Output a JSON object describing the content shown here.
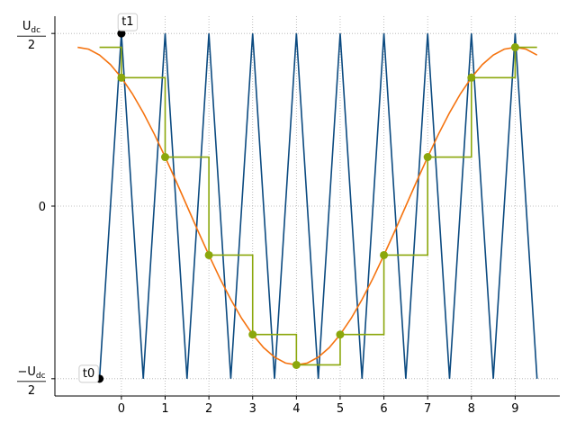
{
  "chart_data": {
    "type": "line",
    "xlim": [
      -1.52,
      10.02
    ],
    "ylim": [
      -1.1,
      1.1
    ],
    "xticks": [
      0,
      1,
      2,
      3,
      4,
      5,
      6,
      7,
      8,
      9
    ],
    "yticks": [
      {
        "value": -1,
        "label": "−Udc/2"
      },
      0,
      {
        "value": 1,
        "label": "Udc/2"
      }
    ],
    "grid": true,
    "series": [
      {
        "style": "line",
        "color": "#0b4a80",
        "x": [
          -0.5,
          0,
          0.5,
          1,
          1.5,
          2,
          2.5,
          3,
          3.5,
          4,
          4.5,
          5,
          5.5,
          6,
          6.5,
          7,
          7.5,
          8,
          8.5,
          9,
          9.5
        ],
        "values": [
          -1,
          1,
          -1,
          1,
          -1,
          1,
          -1,
          1,
          -1,
          1,
          -1,
          1,
          -1,
          1,
          -1,
          1,
          -1,
          1,
          -1,
          1,
          -1
        ]
      },
      {
        "style": "line",
        "color": "#f5730f",
        "x": [
          -1,
          -0.75,
          -0.5,
          -0.25,
          0,
          0.25,
          0.5,
          0.75,
          1,
          1.25,
          1.5,
          1.75,
          2,
          2.25,
          2.5,
          2.75,
          3,
          3.25,
          3.5,
          3.75,
          4,
          4.25,
          4.5,
          4.75,
          5,
          5.25,
          5.5,
          5.75,
          6,
          6.25,
          6.5,
          6.75,
          7,
          7.25,
          7.5,
          7.75,
          8,
          8.25,
          8.5,
          8.75,
          9,
          9.25,
          9.5
        ],
        "values": [
          0.92,
          0.909,
          0.875,
          0.82,
          0.744,
          0.651,
          0.541,
          0.418,
          0.284,
          0.144,
          0,
          -0.144,
          -0.284,
          -0.418,
          -0.541,
          -0.651,
          -0.744,
          -0.82,
          -0.875,
          -0.909,
          -0.92,
          -0.909,
          -0.875,
          -0.82,
          -0.744,
          -0.651,
          -0.541,
          -0.418,
          -0.284,
          -0.144,
          0,
          0.144,
          0.284,
          0.418,
          0.541,
          0.651,
          0.744,
          0.82,
          0.875,
          0.909,
          0.92,
          0.909,
          0.875
        ]
      },
      {
        "style": "step",
        "color": "#8ba70c",
        "x": [
          -0.5,
          0,
          1,
          2,
          3,
          4,
          5,
          6,
          7,
          8,
          9,
          9.5
        ],
        "values": [
          0.92,
          0.744,
          0.284,
          -0.284,
          -0.744,
          -0.92,
          -0.744,
          -0.284,
          0.284,
          0.744,
          0.92,
          0.92
        ]
      },
      {
        "style": "markers",
        "color": "#8ba70c",
        "x": [
          0,
          1,
          2,
          3,
          4,
          5,
          6,
          7,
          8,
          9
        ],
        "values": [
          0.744,
          0.284,
          -0.284,
          -0.744,
          -0.92,
          -0.744,
          -0.284,
          0.284,
          0.744,
          0.92
        ]
      },
      {
        "style": "markers",
        "color": "#000000",
        "x": [
          -0.5,
          0
        ],
        "values": [
          -1,
          1
        ]
      }
    ],
    "annotations": [
      {
        "text": "t0",
        "x": -0.5,
        "y": -1,
        "side": "left"
      },
      {
        "text": "t1",
        "x": 0,
        "y": 1,
        "side": "top"
      }
    ]
  }
}
